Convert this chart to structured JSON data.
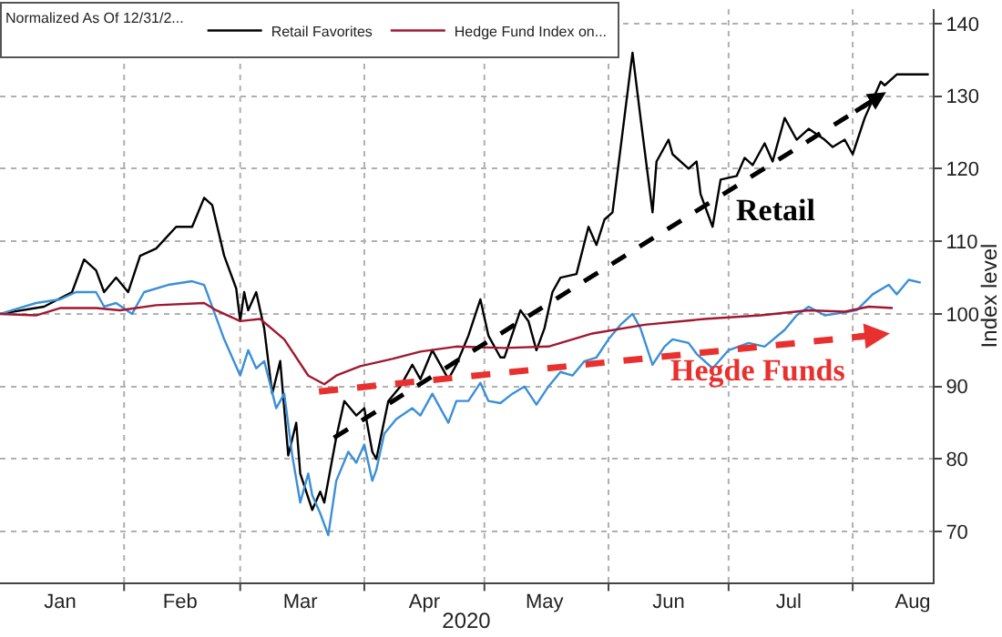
{
  "chart_data": {
    "type": "line",
    "legend_title": "Normalized As Of 12/31/2...",
    "xlabel": "2020",
    "ylabel": "Index level",
    "xlim": [
      "2020-01-01",
      "2020-08-21"
    ],
    "xticks": [
      {
        "value": "2020-01-16",
        "label": "Jan"
      },
      {
        "value": "2020-02-01",
        "label": null
      },
      {
        "value": "2020-02-15",
        "label": "Feb"
      },
      {
        "value": "2020-03-01",
        "label": null
      },
      {
        "value": "2020-03-16",
        "label": "Mar"
      },
      {
        "value": "2020-04-01",
        "label": null
      },
      {
        "value": "2020-04-16",
        "label": "Apr"
      },
      {
        "value": "2020-05-01",
        "label": null
      },
      {
        "value": "2020-05-16",
        "label": "May"
      },
      {
        "value": "2020-06-01",
        "label": null
      },
      {
        "value": "2020-06-16",
        "label": "Jun"
      },
      {
        "value": "2020-07-01",
        "label": null
      },
      {
        "value": "2020-07-16",
        "label": "Jul"
      },
      {
        "value": "2020-08-01",
        "label": null
      },
      {
        "value": "2020-08-16",
        "label": "Aug"
      }
    ],
    "ylim": [
      63,
      142
    ],
    "yticks": [
      70,
      80,
      90,
      100,
      110,
      120,
      130,
      140
    ],
    "grid": "dotted",
    "legend": "top left",
    "marker": "none",
    "line_style": "solid",
    "series": [
      {
        "name": "Retail Favorites",
        "color": "#000000",
        "x": [
          "2020-01-01",
          "2020-01-12",
          "2020-01-19",
          "2020-01-22",
          "2020-01-25",
          "2020-01-27",
          "2020-01-30",
          "2020-02-02",
          "2020-02-05",
          "2020-02-09",
          "2020-02-14",
          "2020-02-18",
          "2020-02-21",
          "2020-02-23",
          "2020-02-26",
          "2020-02-29",
          "2020-03-01",
          "2020-03-02",
          "2020-03-03",
          "2020-03-05",
          "2020-03-07",
          "2020-03-09",
          "2020-03-11",
          "2020-03-13",
          "2020-03-15",
          "2020-03-16",
          "2020-03-19",
          "2020-03-21",
          "2020-03-22",
          "2020-03-25",
          "2020-03-27",
          "2020-03-30",
          "2020-04-01",
          "2020-04-03",
          "2020-04-04",
          "2020-04-07",
          "2020-04-10",
          "2020-04-13",
          "2020-04-15",
          "2020-04-18",
          "2020-04-22",
          "2020-04-24",
          "2020-04-27",
          "2020-04-30",
          "2020-05-02",
          "2020-05-05",
          "2020-05-06",
          "2020-05-10",
          "2020-05-12",
          "2020-05-14",
          "2020-05-16",
          "2020-05-18",
          "2020-05-20",
          "2020-05-24",
          "2020-05-27",
          "2020-05-29",
          "2020-05-31",
          "2020-06-02",
          "2020-06-07",
          "2020-06-09",
          "2020-06-12",
          "2020-06-13",
          "2020-06-16",
          "2020-06-17",
          "2020-06-21",
          "2020-06-23",
          "2020-06-24",
          "2020-06-27",
          "2020-06-29",
          "2020-07-03",
          "2020-07-05",
          "2020-07-07",
          "2020-07-10",
          "2020-07-12",
          "2020-07-15",
          "2020-07-18",
          "2020-07-21",
          "2020-07-25",
          "2020-07-27",
          "2020-07-30",
          "2020-08-01",
          "2020-08-04",
          "2020-08-08",
          "2020-08-09",
          "2020-08-12",
          "2020-08-15",
          "2020-08-20"
        ],
        "values": [
          100,
          101,
          103,
          107.5,
          106,
          103,
          105,
          103,
          108,
          109,
          112,
          112,
          116,
          115,
          108,
          103.5,
          99,
          103,
          100.5,
          103,
          98,
          89,
          93.5,
          80.5,
          85,
          78,
          73,
          75.5,
          74,
          83,
          88,
          86,
          87,
          81,
          80,
          88,
          90,
          93,
          91,
          95,
          91,
          93,
          97,
          102,
          97,
          94,
          94,
          100.5,
          99,
          95,
          98,
          103,
          105,
          105.5,
          112,
          109.5,
          113,
          114,
          136,
          127,
          114,
          121,
          124,
          122,
          120,
          121,
          116.5,
          112,
          118.5,
          119,
          121.5,
          120.5,
          123.5,
          121,
          127,
          124,
          125.5,
          124,
          123,
          124,
          122,
          127,
          132,
          131.5,
          133,
          133,
          133
        ]
      },
      {
        "color": "#3b8fd6",
        "x": [
          "2020-01-01",
          "2020-01-10",
          "2020-01-16",
          "2020-01-20",
          "2020-01-25",
          "2020-01-27",
          "2020-01-30",
          "2020-02-03",
          "2020-02-06",
          "2020-02-12",
          "2020-02-18",
          "2020-02-21",
          "2020-02-23",
          "2020-02-26",
          "2020-03-01",
          "2020-03-03",
          "2020-03-05",
          "2020-03-07",
          "2020-03-10",
          "2020-03-12",
          "2020-03-14",
          "2020-03-16",
          "2020-03-18",
          "2020-03-19",
          "2020-03-21",
          "2020-03-23",
          "2020-03-25",
          "2020-03-28",
          "2020-03-30",
          "2020-04-01",
          "2020-04-03",
          "2020-04-04",
          "2020-04-06",
          "2020-04-09",
          "2020-04-13",
          "2020-04-15",
          "2020-04-18",
          "2020-04-22",
          "2020-04-24",
          "2020-04-27",
          "2020-04-30",
          "2020-05-02",
          "2020-05-05",
          "2020-05-08",
          "2020-05-11",
          "2020-05-14",
          "2020-05-17",
          "2020-05-20",
          "2020-05-23",
          "2020-05-26",
          "2020-05-29",
          "2020-06-01",
          "2020-06-04",
          "2020-06-07",
          "2020-06-09",
          "2020-06-12",
          "2020-06-15",
          "2020-06-17",
          "2020-06-21",
          "2020-06-23",
          "2020-06-27",
          "2020-07-01",
          "2020-07-06",
          "2020-07-10",
          "2020-07-15",
          "2020-07-18",
          "2020-07-21",
          "2020-07-25",
          "2020-07-30",
          "2020-08-02",
          "2020-08-06",
          "2020-08-10",
          "2020-08-12",
          "2020-08-15",
          "2020-08-18"
        ],
        "values": [
          100,
          101.5,
          102,
          103,
          103,
          101,
          101.5,
          100,
          103,
          104,
          104.5,
          104,
          101,
          96.5,
          91.5,
          95,
          92.5,
          93.5,
          87,
          89,
          80.5,
          74,
          78,
          75,
          72.5,
          69.5,
          77,
          81,
          79.5,
          82,
          77,
          78.5,
          83.5,
          85.5,
          87,
          86,
          89,
          85,
          88,
          88,
          90.5,
          88,
          87.7,
          89,
          90,
          87.5,
          90,
          92,
          91.5,
          93.5,
          94,
          96.5,
          98.5,
          100,
          98,
          93,
          95.5,
          96.5,
          96,
          94.5,
          92.5,
          95,
          96,
          95.5,
          97.8,
          99.8,
          101,
          99.8,
          100.2,
          100.5,
          102.7,
          104,
          102.7,
          104.7,
          104.3
        ]
      },
      {
        "name": "Hedge Fund Index on...",
        "color": "#a0182f",
        "x": [
          "2020-01-01",
          "2020-01-10",
          "2020-01-16",
          "2020-01-25",
          "2020-01-31",
          "2020-02-09",
          "2020-02-21",
          "2020-02-24",
          "2020-03-01",
          "2020-03-06",
          "2020-03-12",
          "2020-03-18",
          "2020-03-22",
          "2020-03-25",
          "2020-03-31",
          "2020-04-08",
          "2020-04-15",
          "2020-04-24",
          "2020-05-06",
          "2020-05-17",
          "2020-05-28",
          "2020-06-10",
          "2020-06-25",
          "2020-07-09",
          "2020-07-21",
          "2020-07-30",
          "2020-08-05",
          "2020-08-11"
        ],
        "values": [
          100,
          99.8,
          100.8,
          100.8,
          100.5,
          101.2,
          101.5,
          100.5,
          99,
          99.3,
          96.5,
          91.5,
          90.3,
          91.5,
          92.8,
          93.8,
          94.8,
          95.5,
          95.3,
          95.5,
          97.3,
          98.5,
          99.3,
          99.8,
          100.5,
          100.3,
          101,
          100.8
        ]
      }
    ],
    "annotations": [
      "Retail",
      "Hegde Funds"
    ]
  }
}
